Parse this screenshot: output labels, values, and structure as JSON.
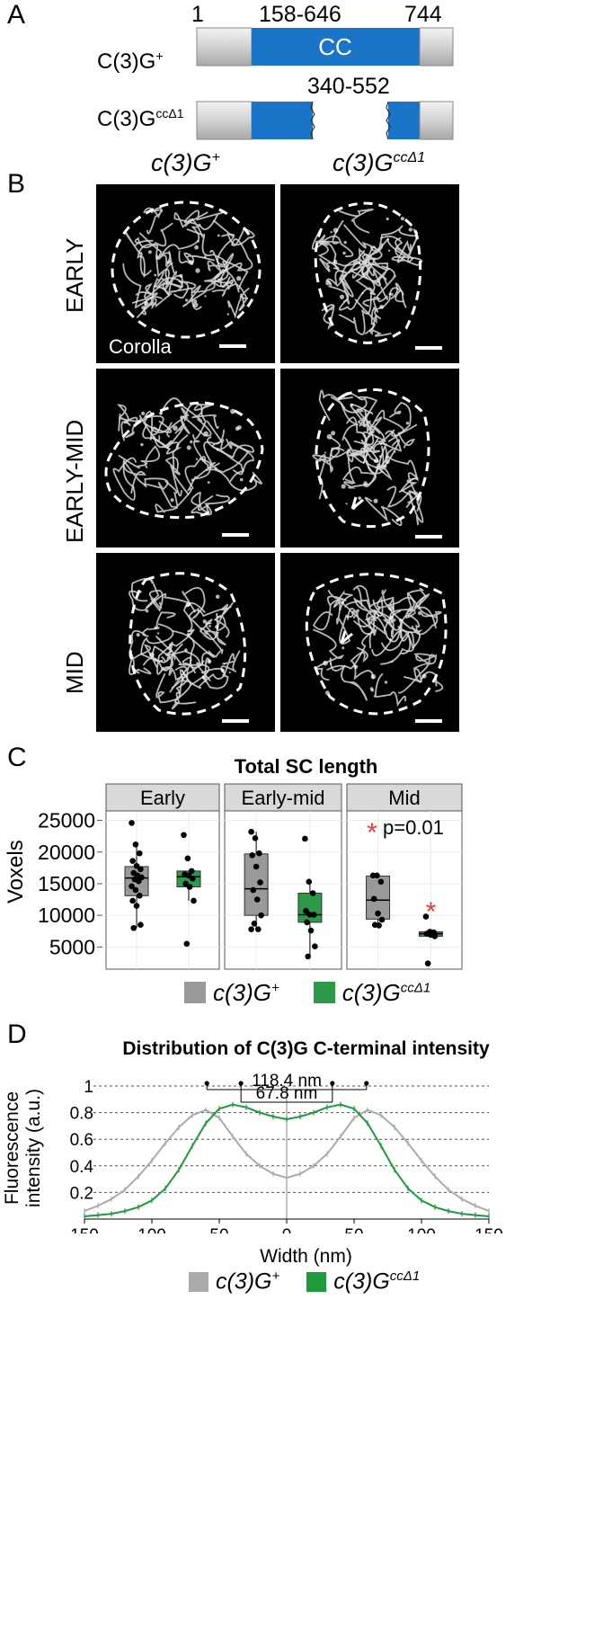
{
  "panelA": {
    "letter": "A",
    "pos_start": "1",
    "pos_cc": "158-646",
    "pos_end": "744",
    "construct1_label": "C(3)G",
    "construct1_sup": "+",
    "domain_label": "CC",
    "deletion_range": "340-552",
    "construct2_label": "C(3)G",
    "construct2_sup": "ccΔ1",
    "colors": {
      "cc_domain": "#1a75c9",
      "terminal": "#d9d9d9"
    }
  },
  "panelB": {
    "letter": "B",
    "col1_italic": "c(3)G",
    "col1_sup": "+",
    "col2_italic": "c(3)G",
    "col2_sup": "ccΔ1",
    "rows": [
      "EARLY",
      "EARLY-MID",
      "MID"
    ],
    "corolla_label": "Corolla"
  },
  "panelC": {
    "letter": "C",
    "chart_data": {
      "type": "box",
      "title": "Total SC length",
      "ylabel": "Voxels",
      "ylim": [
        1500,
        26500
      ],
      "yticks": [
        5000,
        10000,
        15000,
        20000,
        25000
      ],
      "facets": [
        "Early",
        "Early-mid",
        "Mid"
      ],
      "annotation": "p=0.01",
      "series": [
        {
          "facet": "Early",
          "group": "c(3)G+",
          "color": "#999999",
          "q1": 13100,
          "median": 15900,
          "q3": 17700,
          "lower": 8000,
          "upper": 21000,
          "points": [
            24600,
            21200,
            19800,
            18600,
            17800,
            17300,
            16700,
            16300,
            16000,
            15700,
            15400,
            14600,
            14000,
            13100,
            12300,
            11500,
            8500,
            8000
          ]
        },
        {
          "facet": "Early",
          "group": "c(3)GccΔ1",
          "color": "#2d9a4a",
          "q1": 14500,
          "median": 16100,
          "q3": 17000,
          "lower": 12300,
          "upper": 17000,
          "points": [
            22700,
            19000,
            17000,
            16500,
            16300,
            15800,
            15000,
            14500,
            12300,
            5500
          ]
        },
        {
          "facet": "Early-mid",
          "group": "c(3)G+",
          "color": "#999999",
          "q1": 10000,
          "median": 14200,
          "q3": 19700,
          "lower": 7800,
          "upper": 23200,
          "points": [
            23200,
            22200,
            19800,
            19500,
            17700,
            15200,
            14000,
            12500,
            10000,
            8700,
            7800,
            7800
          ]
        },
        {
          "facet": "Early-mid",
          "group": "c(3)GccΔ1",
          "color": "#2d9a4a",
          "q1": 8900,
          "median": 10100,
          "q3": 13500,
          "lower": 3500,
          "upper": 15300,
          "points": [
            22100,
            15300,
            13500,
            10700,
            10100,
            10100,
            8900,
            7600,
            5100,
            3500
          ]
        },
        {
          "facet": "Mid",
          "group": "c(3)G+",
          "color": "#999999",
          "q1": 9400,
          "median": 12400,
          "q3": 16200,
          "lower": 8400,
          "upper": 16200,
          "points": [
            16300,
            16300,
            15300,
            12600,
            10300,
            9300,
            8500,
            8400
          ]
        },
        {
          "facet": "Mid",
          "group": "c(3)GccΔ1",
          "color": "#2d9a4a",
          "q1": 6700,
          "median": 7100,
          "q3": 7400,
          "lower": 6700,
          "upper": 7400,
          "points": [
            9800,
            7400,
            7300,
            7100,
            6900,
            6700,
            2400
          ]
        }
      ]
    },
    "legend": [
      {
        "italic": "c(3)G",
        "sup": "+",
        "color": "#999999"
      },
      {
        "italic": "c(3)G",
        "sup": "ccΔ1",
        "color": "#2d9a4a"
      }
    ]
  },
  "panelD": {
    "letter": "D",
    "chart_data": {
      "type": "line",
      "title": "Distribution of C(3)G C-terminal intensity",
      "xlabel": "Width (nm)",
      "ylabel_line1": "Fluorescence",
      "ylabel_line2": "intensity (a.u.)",
      "xlim": [
        -150,
        150
      ],
      "ylim": [
        0,
        1.0
      ],
      "xticks": [
        -150,
        -100,
        -50,
        0,
        50,
        100,
        150
      ],
      "xtick_labels": [
        "150",
        "100",
        "50",
        "0",
        "50",
        "100",
        "150"
      ],
      "yticks": [
        0.2,
        0.4,
        0.6,
        0.8,
        1.0
      ],
      "ytick_labels": [
        "0.2",
        "0.4",
        "0.6",
        "0.8",
        "1"
      ],
      "annotations": [
        "118.4 nm",
        "67.8 nm"
      ],
      "annot_peaks": [
        [
          -59.2,
          59.2
        ],
        [
          -33.9,
          33.9
        ]
      ],
      "x": [
        -150,
        -140,
        -130,
        -120,
        -110,
        -100,
        -90,
        -80,
        -70,
        -60,
        -50,
        -40,
        -30,
        -20,
        -10,
        0,
        10,
        20,
        30,
        40,
        50,
        60,
        70,
        80,
        90,
        100,
        110,
        120,
        130,
        140,
        150
      ],
      "series": [
        {
          "name": "c(3)G+",
          "color": "#aaaaaa",
          "values": [
            0.06,
            0.1,
            0.15,
            0.22,
            0.32,
            0.44,
            0.57,
            0.69,
            0.78,
            0.82,
            0.76,
            0.62,
            0.49,
            0.4,
            0.34,
            0.31,
            0.34,
            0.4,
            0.49,
            0.62,
            0.76,
            0.82,
            0.78,
            0.69,
            0.57,
            0.44,
            0.32,
            0.22,
            0.15,
            0.1,
            0.06
          ]
        },
        {
          "name": "c(3)GccΔ1",
          "color": "#1e9a3c",
          "values": [
            0.02,
            0.03,
            0.04,
            0.06,
            0.09,
            0.14,
            0.23,
            0.37,
            0.55,
            0.72,
            0.83,
            0.86,
            0.84,
            0.8,
            0.77,
            0.75,
            0.77,
            0.8,
            0.84,
            0.86,
            0.83,
            0.72,
            0.55,
            0.37,
            0.23,
            0.14,
            0.09,
            0.06,
            0.04,
            0.03,
            0.02
          ]
        }
      ]
    },
    "legend": [
      {
        "italic": "c(3)G",
        "sup": "+",
        "color": "#aaaaaa"
      },
      {
        "italic": "c(3)G",
        "sup": "ccΔ1",
        "color": "#1e9a3c"
      }
    ]
  }
}
